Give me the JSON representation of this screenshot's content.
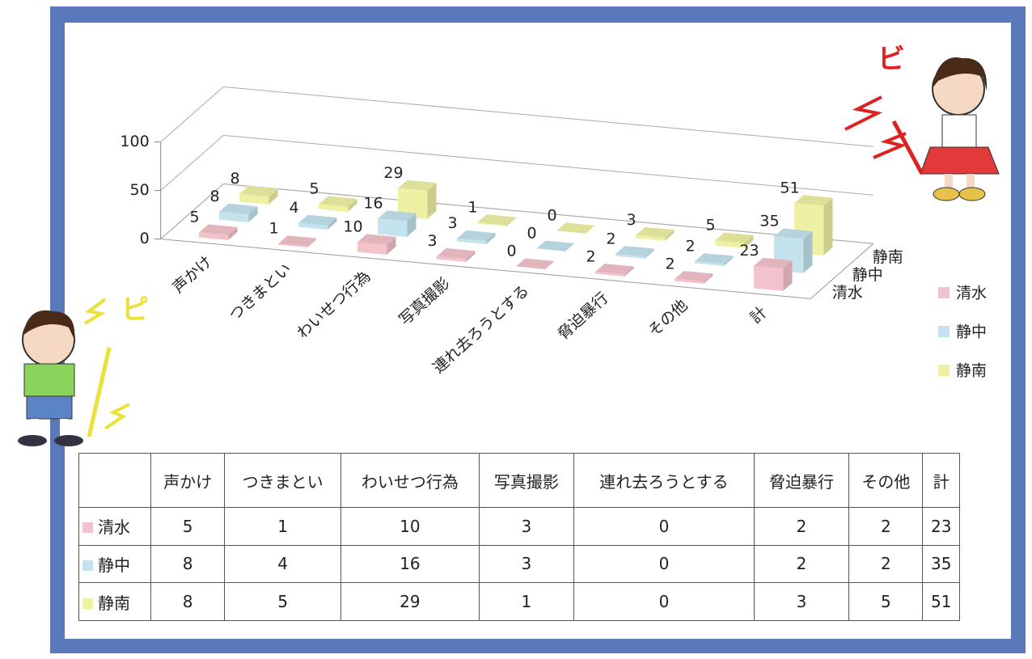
{
  "chart_data": {
    "type": "bar3d",
    "categories": [
      "声かけ",
      "つきまとい",
      "わいせつ行為",
      "写真撮影",
      "連れ去ろうとする",
      "脅迫暴行",
      "その他",
      "計"
    ],
    "series": [
      {
        "name": "清水",
        "color": "#f3c3cb",
        "values": [
          5,
          1,
          10,
          3,
          0,
          2,
          2,
          23
        ]
      },
      {
        "name": "静中",
        "color": "#c4e3ee",
        "values": [
          8,
          4,
          16,
          3,
          0,
          2,
          2,
          35
        ]
      },
      {
        "name": "静南",
        "color": "#eef1a3",
        "values": [
          8,
          5,
          29,
          1,
          0,
          3,
          5,
          51
        ]
      }
    ],
    "ylim": [
      0,
      100
    ],
    "yticks": [
      0,
      50,
      100
    ],
    "grid": true
  },
  "sound_effects": [
    "ビ",
    "ピ"
  ]
}
